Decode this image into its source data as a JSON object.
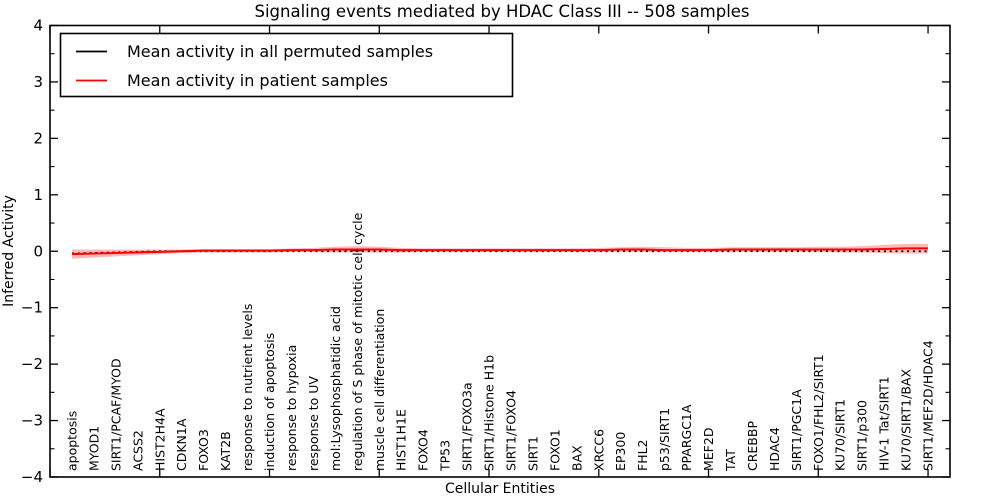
{
  "figure": {
    "title": "Signaling events mediated by HDAC Class III -- 508 samples",
    "xlabel": "Cellular Entities",
    "ylabel": "Inferred Activity",
    "background_color": "#ffffff",
    "frame_color": "#000000"
  },
  "legend": {
    "position": "upper left",
    "items": [
      {
        "label": "Mean activity in all permuted samples",
        "color": "#000000"
      },
      {
        "label": "Mean activity in patient samples",
        "color": "#ff0000"
      }
    ]
  },
  "chart_data": {
    "type": "line",
    "title": "Signaling events mediated by HDAC Class III -- 508 samples",
    "xlabel": "Cellular Entities",
    "ylabel": "Inferred Activity",
    "ylim": [
      -4,
      4
    ],
    "xlim": [
      0,
      41
    ],
    "yticks": [
      -4,
      -3,
      -2,
      -1,
      0,
      1,
      2,
      3,
      4
    ],
    "y_minor_step": 0.5,
    "xticks": [
      0,
      5,
      10,
      15,
      20,
      25,
      30,
      35,
      40
    ],
    "grid": false,
    "legend_position": "upper left",
    "categories": [
      "apoptosis",
      "MYOD1",
      "SIRT1/PCAF/MYOD",
      "ACSS2",
      "HIST2H4A",
      "CDKN1A",
      "FOXO3",
      "KAT2B",
      "response to nutrient levels",
      "induction of apoptosis",
      "response to hypoxia",
      "response to UV",
      "mol:Lysophosphatidic acid",
      "regulation of S phase of mitotic cell cycle",
      "muscle cell differentiation",
      "HIST1H1E",
      "FOXO4",
      "TP53",
      "SIRT1/FOXO3a",
      "SIRT1/Histone H1b",
      "SIRT1/FOXO4",
      "SIRT1",
      "FOXO1",
      "BAX",
      "XRCC6",
      "EP300",
      "FHL2",
      "p53/SIRT1",
      "PPARGC1A",
      "MEF2D",
      "TAT",
      "CREBBP",
      "HDAC4",
      "SIRT1/PGC1A",
      "FOXO1/FHL2/SIRT1",
      "KU70/SIRT1",
      "SIRT1/p300",
      "HIV-1 Tat/SIRT1",
      "KU70/SIRT1/BAX",
      "SIRT1/MEF2D/HDAC4"
    ],
    "series": [
      {
        "name": "Mean activity in all permuted samples",
        "color": "#000000",
        "style": "dotted",
        "values": [
          -0.04,
          -0.03,
          -0.02,
          -0.01,
          0,
          0,
          0,
          0,
          0,
          0,
          0,
          0,
          0,
          0,
          0,
          0,
          0,
          0,
          0,
          0,
          0,
          0,
          0,
          0,
          0,
          0,
          0,
          0,
          0,
          0,
          0,
          0,
          0,
          0,
          0,
          0,
          0,
          0,
          0,
          0
        ]
      },
      {
        "name": "Mean activity in patient samples",
        "color": "#ff0000",
        "style": "solid",
        "band_color": "#ff0000",
        "band_opacity": 0.28,
        "values": [
          -0.05,
          -0.04,
          -0.03,
          -0.02,
          -0.01,
          0,
          0.01,
          0.01,
          0.01,
          0.01,
          0.02,
          0.02,
          0.03,
          0.03,
          0.03,
          0.02,
          0.02,
          0.02,
          0.02,
          0.02,
          0.02,
          0.02,
          0.02,
          0.02,
          0.02,
          0.03,
          0.03,
          0.02,
          0.02,
          0.02,
          0.03,
          0.03,
          0.03,
          0.03,
          0.03,
          0.03,
          0.03,
          0.04,
          0.05,
          0.05
        ],
        "band_upper": [
          0.03,
          0.03,
          0.03,
          0.03,
          0.03,
          0.03,
          0.04,
          0.04,
          0.04,
          0.04,
          0.05,
          0.06,
          0.08,
          0.09,
          0.08,
          0.06,
          0.05,
          0.05,
          0.05,
          0.05,
          0.05,
          0.05,
          0.05,
          0.05,
          0.06,
          0.07,
          0.08,
          0.07,
          0.06,
          0.06,
          0.07,
          0.07,
          0.07,
          0.07,
          0.08,
          0.08,
          0.09,
          0.11,
          0.13,
          0.13
        ],
        "band_lower": [
          -0.13,
          -0.11,
          -0.09,
          -0.07,
          -0.05,
          -0.03,
          -0.02,
          -0.02,
          -0.02,
          -0.02,
          -0.01,
          -0.01,
          -0.02,
          -0.02,
          -0.02,
          -0.02,
          -0.01,
          -0.01,
          -0.01,
          -0.01,
          -0.01,
          -0.01,
          -0.01,
          -0.01,
          -0.01,
          -0.01,
          -0.01,
          -0.01,
          -0.01,
          -0.01,
          -0.01,
          -0.01,
          -0.01,
          -0.01,
          -0.01,
          -0.02,
          -0.02,
          -0.03,
          -0.04,
          -0.04
        ]
      }
    ]
  }
}
